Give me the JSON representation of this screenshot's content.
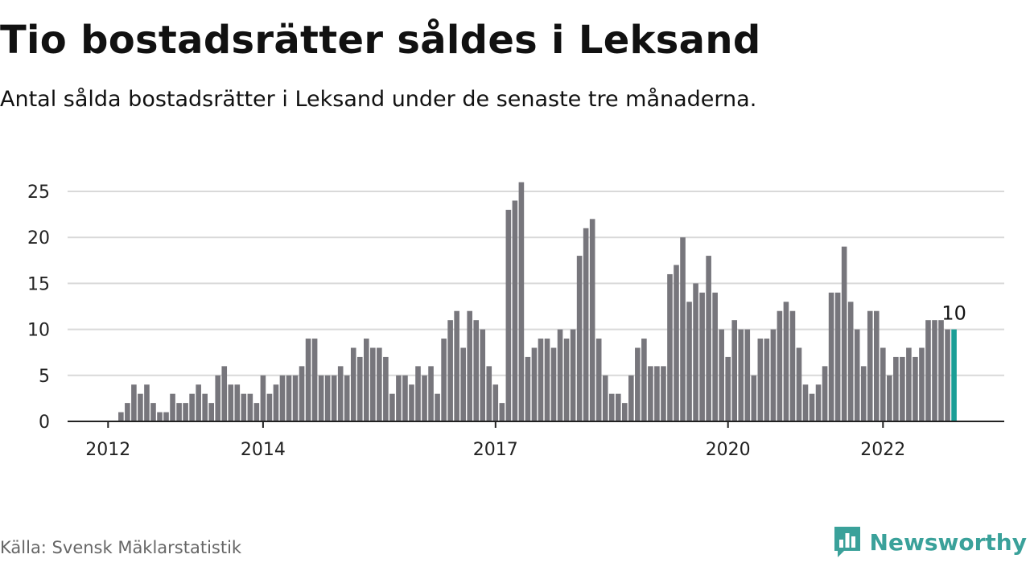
{
  "title": "Tio bostadsrätter såldes i Leksand",
  "subtitle": "Antal sålda bostadsrätter i Leksand under de senaste tre månaderna.",
  "source": "Källa: Svensk Mäklarstatistik",
  "brand": "Newsworthy",
  "colors": {
    "bar": "#77767c",
    "highlight": "#1a9e96",
    "grid": "#d9d9d9",
    "axis": "#222222",
    "brand": "#3aa19a"
  },
  "icons": {
    "brand_logo": "chart-speech-bubble-icon"
  },
  "chart_data": {
    "type": "bar",
    "title": "Tio bostadsrätter såldes i Leksand",
    "xlabel": "",
    "ylabel": "",
    "ylim": [
      0,
      26
    ],
    "yticks": [
      0,
      5,
      10,
      15,
      20,
      25
    ],
    "grid": true,
    "x_tick_labels": [
      {
        "label": "2012",
        "index": 0
      },
      {
        "label": "2014",
        "index": 24
      },
      {
        "label": "2017",
        "index": 60
      },
      {
        "label": "2020",
        "index": 96
      },
      {
        "label": "2022",
        "index": 120
      }
    ],
    "highlight_last": true,
    "last_value_label": "10",
    "values": [
      0,
      0,
      1,
      2,
      4,
      3,
      4,
      2,
      1,
      1,
      3,
      2,
      2,
      3,
      4,
      3,
      2,
      5,
      6,
      4,
      4,
      3,
      3,
      2,
      5,
      3,
      4,
      5,
      5,
      5,
      6,
      9,
      9,
      5,
      5,
      5,
      6,
      5,
      8,
      7,
      9,
      8,
      8,
      7,
      3,
      5,
      5,
      4,
      6,
      5,
      6,
      3,
      9,
      11,
      12,
      8,
      12,
      11,
      10,
      6,
      4,
      2,
      23,
      24,
      26,
      7,
      8,
      9,
      9,
      8,
      10,
      9,
      10,
      18,
      21,
      22,
      9,
      5,
      3,
      3,
      2,
      5,
      8,
      9,
      6,
      6,
      6,
      16,
      17,
      20,
      13,
      15,
      14,
      18,
      14,
      10,
      7,
      11,
      10,
      10,
      5,
      9,
      9,
      10,
      12,
      13,
      12,
      8,
      4,
      3,
      4,
      6,
      14,
      14,
      19,
      13,
      10,
      6,
      12,
      12,
      8,
      5,
      7,
      7,
      8,
      7,
      8,
      11,
      11,
      11,
      10,
      10
    ]
  }
}
